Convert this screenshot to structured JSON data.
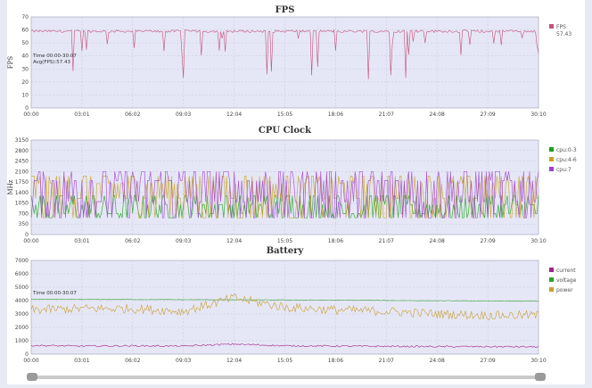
{
  "charts": [
    {
      "title": "FPS",
      "ylabel": "FPS",
      "yticks": [
        "0",
        "10",
        "20",
        "30",
        "40",
        "50",
        "60",
        "70"
      ],
      "legend": [
        {
          "name": "FPS",
          "color": "#c5507a",
          "extra": "57.43"
        }
      ],
      "overlay": [
        "Time 00:00-30:07",
        "Avg(FPS):57.43"
      ]
    },
    {
      "title": "CPU Clock",
      "ylabel": "MHz",
      "yticks": [
        "0",
        "350",
        "700",
        "1050",
        "1400",
        "1750",
        "2100",
        "2450",
        "2800",
        "3150"
      ],
      "legend": [
        {
          "name": "cpu:0-3",
          "color": "#1aa21a"
        },
        {
          "name": "cpu:4-6",
          "color": "#c8a020"
        },
        {
          "name": "cpu:7",
          "color": "#a040d0"
        }
      ],
      "overlay": []
    },
    {
      "title": "Battery",
      "ylabel": "",
      "yticks": [
        "0",
        "1000",
        "2000",
        "3000",
        "4000",
        "5000",
        "6000",
        "7000"
      ],
      "legend": [
        {
          "name": "current",
          "color": "#a0208a"
        },
        {
          "name": "voltage",
          "color": "#30a030"
        },
        {
          "name": "power",
          "color": "#c8a030"
        }
      ],
      "overlay": [
        "Time 00:00-30:07"
      ]
    }
  ],
  "xticks": [
    "00:00",
    "03:01",
    "06:02",
    "09:03",
    "12:04",
    "15:05",
    "18:06",
    "21:07",
    "24:08",
    "27:09",
    "30:10"
  ],
  "chart_data": [
    {
      "type": "line",
      "title": "FPS",
      "ylabel": "FPS",
      "ylim": [
        0,
        70
      ],
      "x": [
        "00:00",
        "03:01",
        "06:02",
        "09:03",
        "12:04",
        "15:05",
        "18:06",
        "21:07",
        "24:08",
        "27:09",
        "30:10"
      ],
      "series": [
        {
          "name": "FPS",
          "values": [
            58,
            59,
            57,
            56,
            57,
            58,
            58,
            57,
            59,
            59,
            60
          ]
        }
      ],
      "grid": true,
      "legend": "right"
    },
    {
      "type": "line",
      "title": "CPU Clock",
      "ylabel": "MHz",
      "ylim": [
        0,
        3150
      ],
      "x": [
        "00:00",
        "03:01",
        "06:02",
        "09:03",
        "12:04",
        "15:05",
        "18:06",
        "21:07",
        "24:08",
        "27:09",
        "30:10"
      ],
      "series": [
        {
          "name": "cpu:0-3",
          "values": [
            1000,
            800,
            900,
            800,
            850,
            800,
            800,
            850,
            800,
            800,
            800
          ]
        },
        {
          "name": "cpu:4-6",
          "values": [
            1600,
            1500,
            1700,
            1550,
            1600,
            1500,
            1550,
            1600,
            1500,
            1500,
            1400
          ]
        },
        {
          "name": "cpu:7",
          "values": [
            2000,
            1900,
            2000,
            1800,
            1900,
            1850,
            1900,
            1850,
            1800,
            1900,
            1700
          ]
        }
      ],
      "grid": true,
      "legend": "right"
    },
    {
      "type": "line",
      "title": "Battery",
      "ylim": [
        0,
        7000
      ],
      "x": [
        "00:00",
        "03:01",
        "06:02",
        "09:03",
        "12:04",
        "15:05",
        "18:06",
        "21:07",
        "24:08",
        "27:09",
        "30:10"
      ],
      "series": [
        {
          "name": "current",
          "values": [
            650,
            600,
            620,
            600,
            750,
            620,
            600,
            580,
            560,
            560,
            540
          ]
        },
        {
          "name": "voltage",
          "values": [
            4100,
            4090,
            4080,
            4070,
            4060,
            4050,
            4030,
            4010,
            3990,
            3970,
            3950
          ]
        },
        {
          "name": "power",
          "values": [
            3300,
            3400,
            3400,
            3200,
            4200,
            3500,
            3300,
            3200,
            3000,
            2900,
            2900
          ]
        }
      ],
      "grid": true,
      "legend": "right"
    }
  ]
}
